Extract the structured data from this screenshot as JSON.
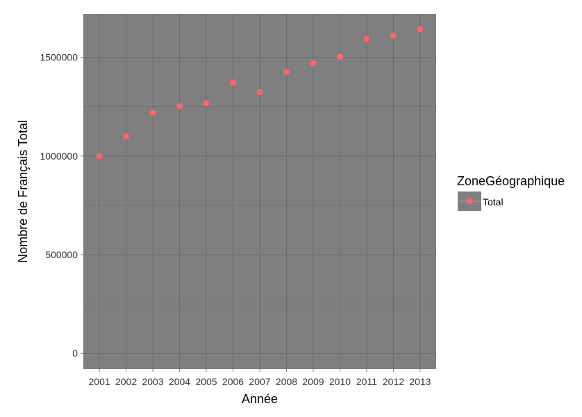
{
  "chart_data": {
    "type": "scatter",
    "xlabel": "Année",
    "ylabel": "Nombre de Français Total",
    "x": [
      "2001",
      "2002",
      "2003",
      "2004",
      "2005",
      "2006",
      "2007",
      "2008",
      "2009",
      "2010",
      "2011",
      "2012",
      "2013"
    ],
    "series": [
      {
        "name": "Total",
        "values": [
          1000000,
          1100000,
          1220000,
          1253000,
          1268000,
          1373000,
          1325000,
          1427000,
          1470000,
          1504000,
          1594000,
          1611000,
          1643000
        ],
        "color": "#ff6666"
      }
    ],
    "y_ticks": [
      "0",
      "500000",
      "1000000",
      "1500000"
    ],
    "ylim": [
      -80000,
      1720000
    ],
    "grid": true,
    "panel_background": "#7f7f7f",
    "grid_color": "#6b6b6b",
    "legend": {
      "title": "ZoneGéographique",
      "placement": "right",
      "entries": [
        "Total"
      ]
    }
  }
}
